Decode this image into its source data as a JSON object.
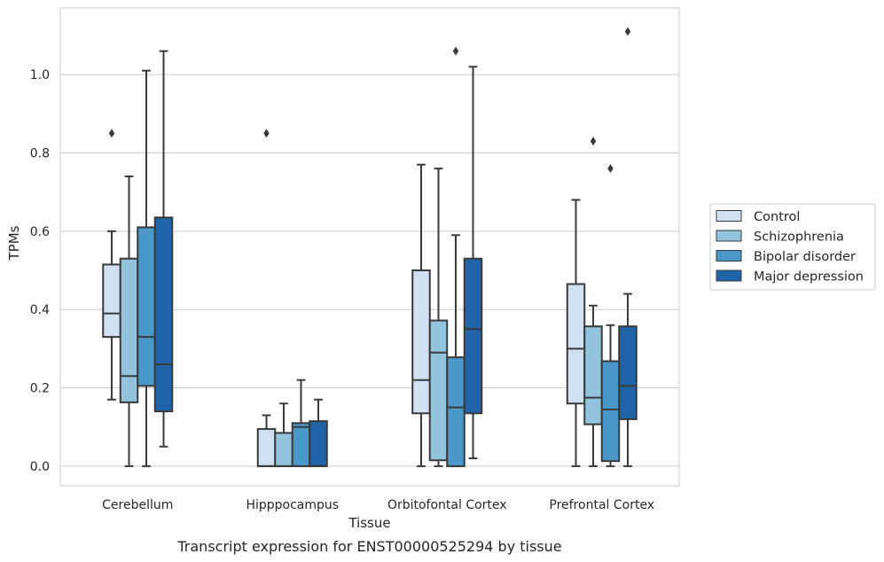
{
  "chart_data": {
    "type": "box",
    "categories": [
      "Cerebellum",
      "Hipppocampus",
      "Orbitofontal Cortex",
      "Prefrontal Cortex"
    ],
    "xlabel": "Tissue",
    "ylabel": "TPMs",
    "caption": "Transcript expression for ENST00000525294 by tissue",
    "ylim": [
      -0.05,
      1.17
    ],
    "yticks": [
      0.0,
      0.2,
      0.4,
      0.6,
      0.8,
      1.0
    ],
    "ytick_labels": [
      "0.0",
      "0.2",
      "0.4",
      "0.6",
      "0.8",
      "1.0"
    ],
    "grid": "horizontal",
    "legend_position": "right",
    "series": [
      {
        "name": "Control",
        "color": "#cfe1f2",
        "boxes": [
          {
            "whislo": 0.17,
            "q1": 0.33,
            "med": 0.39,
            "q3": 0.515,
            "whishi": 0.6,
            "fliers": [
              0.85
            ]
          },
          {
            "whislo": 0.0,
            "q1": 0.0,
            "med": 0.0,
            "q3": 0.095,
            "whishi": 0.13,
            "fliers": [
              0.85
            ]
          },
          {
            "whislo": 0.0,
            "q1": 0.135,
            "med": 0.22,
            "q3": 0.5,
            "whishi": 0.77,
            "fliers": []
          },
          {
            "whislo": 0.0,
            "q1": 0.16,
            "med": 0.3,
            "q3": 0.465,
            "whishi": 0.68,
            "fliers": []
          }
        ]
      },
      {
        "name": "Schizophrenia",
        "color": "#93c4de",
        "boxes": [
          {
            "whislo": 0.0,
            "q1": 0.163,
            "med": 0.23,
            "q3": 0.53,
            "whishi": 0.74,
            "fliers": []
          },
          {
            "whislo": 0.0,
            "q1": 0.0,
            "med": 0.0,
            "q3": 0.085,
            "whishi": 0.16,
            "fliers": []
          },
          {
            "whislo": 0.0,
            "q1": 0.015,
            "med": 0.29,
            "q3": 0.372,
            "whishi": 0.76,
            "fliers": []
          },
          {
            "whislo": 0.0,
            "q1": 0.107,
            "med": 0.175,
            "q3": 0.357,
            "whishi": 0.41,
            "fliers": [
              0.83
            ]
          }
        ]
      },
      {
        "name": "Bipolar disorder",
        "color": "#4a98c9",
        "boxes": [
          {
            "whislo": 0.0,
            "q1": 0.205,
            "med": 0.33,
            "q3": 0.61,
            "whishi": 1.01,
            "fliers": []
          },
          {
            "whislo": 0.0,
            "q1": 0.0,
            "med": 0.1,
            "q3": 0.11,
            "whishi": 0.22,
            "fliers": []
          },
          {
            "whislo": 0.0,
            "q1": 0.0,
            "med": 0.15,
            "q3": 0.278,
            "whishi": 0.59,
            "fliers": [
              1.06
            ]
          },
          {
            "whislo": 0.0,
            "q1": 0.013,
            "med": 0.145,
            "q3": 0.268,
            "whishi": 0.36,
            "fliers": [
              0.76
            ]
          }
        ]
      },
      {
        "name": "Major depression",
        "color": "#1f63a8",
        "boxes": [
          {
            "whislo": 0.05,
            "q1": 0.14,
            "med": 0.26,
            "q3": 0.635,
            "whishi": 1.06,
            "fliers": []
          },
          {
            "whislo": 0.0,
            "q1": 0.0,
            "med": 0.0,
            "q3": 0.115,
            "whishi": 0.17,
            "fliers": []
          },
          {
            "whislo": 0.02,
            "q1": 0.135,
            "med": 0.35,
            "q3": 0.53,
            "whishi": 1.02,
            "fliers": []
          },
          {
            "whislo": 0.0,
            "q1": 0.12,
            "med": 0.205,
            "q3": 0.357,
            "whishi": 0.44,
            "fliers": [
              1.11
            ]
          }
        ]
      }
    ]
  },
  "colors": {
    "grid": "#cccccc",
    "frame": "#cccccc",
    "box_edge": "#3a3a3a",
    "text": "#262626"
  }
}
